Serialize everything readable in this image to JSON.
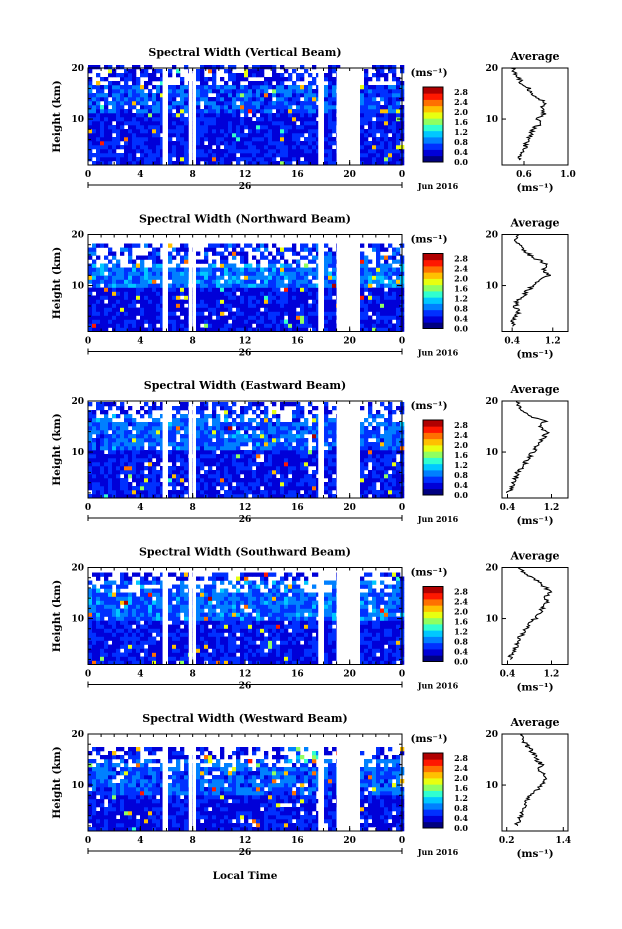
{
  "figure": {
    "xlabel": "Local Time",
    "ylabel": "Height (km)",
    "unit": "(ms⁻¹)",
    "date_label": "Jun 2016",
    "day_label": "26",
    "avg_title": "Average"
  },
  "colors": {
    "scale": [
      "#000080",
      "#0000d8",
      "#0030ff",
      "#0080ff",
      "#00c8ff",
      "#30ffd0",
      "#90ff60",
      "#e8ff10",
      "#ffc000",
      "#ff7000",
      "#ff1800",
      "#b00000"
    ],
    "line": "#000000",
    "gap": "#ffffff"
  },
  "chart_data": [
    {
      "type": "heatmap",
      "title": "Spectral Width (Vertical Beam)",
      "xlabel": "",
      "ylabel": "Height (km)",
      "xticks": [
        "0",
        "4",
        "8",
        "12",
        "16",
        "20",
        "0"
      ],
      "xlim": [
        0,
        24
      ],
      "yticks": [
        "20",
        "10"
      ],
      "ylim": [
        1,
        20
      ],
      "colorbar": {
        "label": "(ms⁻¹)",
        "ticks": [
          "2.8",
          "2.4",
          "2.0",
          "1.6",
          "1.2",
          "0.8",
          "0.4",
          "0.0"
        ],
        "range": [
          0,
          3.0
        ]
      },
      "data_gaps_hours": [
        [
          5.7,
          5.9
        ],
        [
          7.7,
          7.95
        ],
        [
          17.6,
          17.9
        ],
        [
          19.0,
          20.7
        ]
      ],
      "profile": {
        "title": "Average",
        "xlabel": "(ms⁻¹)",
        "xticks": [
          "0.6",
          "1.0"
        ],
        "xlim": [
          0.4,
          1.0
        ],
        "yticks": [
          "20",
          "10"
        ],
        "ylim": [
          1,
          20
        ],
        "heights_km": [
          2,
          3,
          4,
          5,
          6,
          7,
          8,
          9,
          10,
          11,
          12,
          13,
          14,
          15,
          16,
          17,
          18,
          19,
          20
        ],
        "values": [
          0.56,
          0.58,
          0.6,
          0.62,
          0.63,
          0.66,
          0.68,
          0.74,
          0.72,
          0.78,
          0.76,
          0.8,
          0.74,
          0.68,
          0.64,
          0.58,
          0.56,
          0.52,
          0.5
        ]
      }
    },
    {
      "type": "heatmap",
      "title": "Spectral Width (Northward Beam)",
      "xlabel": "",
      "ylabel": "Height (km)",
      "xticks": [
        "0",
        "4",
        "8",
        "12",
        "16",
        "20",
        "0"
      ],
      "xlim": [
        0,
        24
      ],
      "yticks": [
        "20",
        "10"
      ],
      "ylim": [
        1,
        20
      ],
      "colorbar": {
        "label": "(ms⁻¹)",
        "ticks": [
          "2.8",
          "2.4",
          "2.0",
          "1.6",
          "1.2",
          "0.8",
          "0.4",
          "0.0"
        ],
        "range": [
          0,
          3.0
        ]
      },
      "data_gaps_hours": [
        [
          5.7,
          5.9
        ],
        [
          7.7,
          7.95
        ],
        [
          17.6,
          17.9
        ],
        [
          19.0,
          20.7
        ]
      ],
      "profile": {
        "title": "Average",
        "xlabel": "(ms⁻¹)",
        "xticks": [
          "0.4",
          "1.2"
        ],
        "xlim": [
          0.2,
          1.5
        ],
        "yticks": [
          "20",
          "10"
        ],
        "ylim": [
          1,
          20
        ],
        "heights_km": [
          2,
          3,
          4,
          5,
          6,
          7,
          8,
          9,
          10,
          11,
          12,
          13,
          14,
          15,
          16,
          17,
          18,
          19,
          20
        ],
        "values": [
          0.4,
          0.42,
          0.48,
          0.52,
          0.46,
          0.5,
          0.62,
          0.7,
          0.82,
          0.96,
          1.12,
          1.02,
          1.08,
          0.92,
          0.74,
          0.6,
          0.52,
          0.46,
          0.5
        ]
      }
    },
    {
      "type": "heatmap",
      "title": "Spectral Width (Eastward Beam)",
      "xlabel": "",
      "ylabel": "Height (km)",
      "xticks": [
        "0",
        "4",
        "8",
        "12",
        "16",
        "20",
        "0"
      ],
      "xlim": [
        0,
        24
      ],
      "yticks": [
        "20",
        "10"
      ],
      "ylim": [
        1,
        20
      ],
      "colorbar": {
        "label": "(ms⁻¹)",
        "ticks": [
          "2.8",
          "2.4",
          "2.0",
          "1.6",
          "1.2",
          "0.8",
          "0.4",
          "0.0"
        ],
        "range": [
          0,
          3.0
        ]
      },
      "data_gaps_hours": [
        [
          5.7,
          5.9
        ],
        [
          7.7,
          7.95
        ],
        [
          17.6,
          17.9
        ],
        [
          19.0,
          20.7
        ]
      ],
      "profile": {
        "title": "Average",
        "xlabel": "(ms⁻¹)",
        "xticks": [
          "0.4",
          "1.2"
        ],
        "xlim": [
          0.3,
          1.5
        ],
        "yticks": [
          "20",
          "10"
        ],
        "ylim": [
          1,
          20
        ],
        "heights_km": [
          2,
          3,
          4,
          5,
          6,
          7,
          8,
          9,
          10,
          11,
          12,
          13,
          14,
          15,
          16,
          17,
          18,
          19,
          20
        ],
        "values": [
          0.42,
          0.46,
          0.5,
          0.56,
          0.58,
          0.66,
          0.72,
          0.8,
          0.86,
          0.92,
          1.0,
          1.06,
          1.14,
          0.96,
          1.08,
          0.8,
          0.7,
          0.62,
          0.56
        ]
      }
    },
    {
      "type": "heatmap",
      "title": "Spectral Width (Southward Beam)",
      "xlabel": "",
      "ylabel": "Height (km)",
      "xticks": [
        "0",
        "4",
        "8",
        "12",
        "16",
        "20",
        "0"
      ],
      "xlim": [
        0,
        24
      ],
      "yticks": [
        "20",
        "10"
      ],
      "ylim": [
        1,
        20
      ],
      "colorbar": {
        "label": "(ms⁻¹)",
        "ticks": [
          "2.8",
          "2.4",
          "2.0",
          "1.6",
          "1.2",
          "0.8",
          "0.4",
          "0.0"
        ],
        "range": [
          0,
          3.0
        ]
      },
      "data_gaps_hours": [
        [
          5.7,
          5.9
        ],
        [
          7.7,
          7.95
        ],
        [
          17.6,
          17.9
        ],
        [
          19.0,
          20.7
        ]
      ],
      "profile": {
        "title": "Average",
        "xlabel": "(ms⁻¹)",
        "xticks": [
          "0.4",
          "1.2"
        ],
        "xlim": [
          0.3,
          1.5
        ],
        "yticks": [
          "20",
          "10"
        ],
        "ylim": [
          1,
          20
        ],
        "heights_km": [
          2,
          3,
          4,
          5,
          6,
          7,
          8,
          9,
          10,
          11,
          12,
          13,
          14,
          15,
          16,
          17,
          18,
          19,
          20
        ],
        "values": [
          0.44,
          0.48,
          0.52,
          0.58,
          0.62,
          0.66,
          0.72,
          0.82,
          0.9,
          0.96,
          1.04,
          1.12,
          1.08,
          1.18,
          1.1,
          0.98,
          0.86,
          0.72,
          0.6
        ]
      }
    },
    {
      "type": "heatmap",
      "title": "Spectral Width (Westward Beam)",
      "xlabel": "Local Time",
      "ylabel": "Height (km)",
      "xticks": [
        "0",
        "4",
        "8",
        "12",
        "16",
        "20",
        "0"
      ],
      "xlim": [
        0,
        24
      ],
      "yticks": [
        "20",
        "10"
      ],
      "ylim": [
        1,
        20
      ],
      "colorbar": {
        "label": "(ms⁻¹)",
        "ticks": [
          "2.8",
          "2.4",
          "2.0",
          "1.6",
          "1.2",
          "0.8",
          "0.4",
          "0.0"
        ],
        "range": [
          0,
          3.0
        ]
      },
      "data_gaps_hours": [
        [
          5.7,
          5.9
        ],
        [
          7.7,
          7.95
        ],
        [
          17.6,
          17.9
        ],
        [
          19.0,
          20.7
        ]
      ],
      "profile": {
        "title": "Average",
        "xlabel": "(ms⁻¹)",
        "xticks": [
          "0.2",
          "1.4"
        ],
        "xlim": [
          0.1,
          1.5
        ],
        "yticks": [
          "20",
          "10"
        ],
        "ylim": [
          1,
          20
        ],
        "heights_km": [
          2,
          3,
          4,
          5,
          6,
          7,
          8,
          9,
          10,
          11,
          12,
          13,
          14,
          15,
          16,
          17,
          18,
          19,
          20
        ],
        "values": [
          0.4,
          0.44,
          0.5,
          0.56,
          0.6,
          0.64,
          0.72,
          0.84,
          0.96,
          1.04,
          0.98,
          0.9,
          0.94,
          0.84,
          0.78,
          0.7,
          0.6,
          0.52,
          0.48
        ]
      }
    }
  ]
}
